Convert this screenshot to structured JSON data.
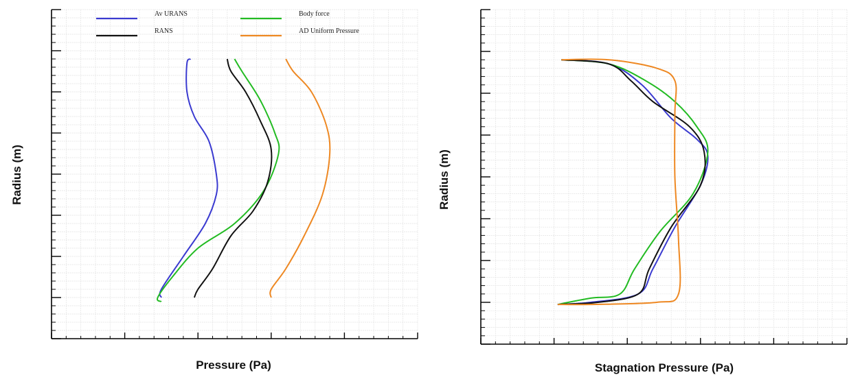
{
  "chart_data": [
    {
      "type": "line",
      "xlabel": "Pressure (Pa)",
      "ylabel": "Radius (m)",
      "x_tick_labels": [],
      "y_tick_labels": [],
      "xlim": [
        0,
        10
      ],
      "ylim": [
        0,
        8
      ],
      "grid": true,
      "legend": {
        "placement": "top",
        "columns": 2
      },
      "series": [
        {
          "name": "Av URANS",
          "color": "#3a3ad0",
          "points": [
            [
              3.8,
              6.8
            ],
            [
              3.7,
              6.7
            ],
            [
              3.7,
              6.0
            ],
            [
              3.9,
              5.4
            ],
            [
              4.3,
              4.8
            ],
            [
              4.5,
              4.0
            ],
            [
              4.5,
              3.5
            ],
            [
              4.2,
              2.8
            ],
            [
              3.6,
              2.0
            ],
            [
              3.0,
              1.2
            ],
            [
              3.0,
              1.0
            ]
          ]
        },
        {
          "name": "Body force",
          "color": "#22bb22",
          "points": [
            [
              5.0,
              6.8
            ],
            [
              5.2,
              6.5
            ],
            [
              5.7,
              5.8
            ],
            [
              6.1,
              5.0
            ],
            [
              6.2,
              4.5
            ],
            [
              5.8,
              3.6
            ],
            [
              5.0,
              2.8
            ],
            [
              4.0,
              2.2
            ],
            [
              3.3,
              1.5
            ],
            [
              2.9,
              1.0
            ],
            [
              3.0,
              0.9
            ]
          ]
        },
        {
          "name": "RANS",
          "color": "#111111",
          "points": [
            [
              4.8,
              6.8
            ],
            [
              4.9,
              6.5
            ],
            [
              5.3,
              6.0
            ],
            [
              5.7,
              5.3
            ],
            [
              6.0,
              4.6
            ],
            [
              5.9,
              3.8
            ],
            [
              5.5,
              3.1
            ],
            [
              4.9,
              2.5
            ],
            [
              4.4,
              1.7
            ],
            [
              4.0,
              1.2
            ],
            [
              3.9,
              1.0
            ]
          ]
        },
        {
          "name": "AD Uniform Pressure",
          "color": "#ee8822",
          "points": [
            [
              6.4,
              6.8
            ],
            [
              6.6,
              6.5
            ],
            [
              7.1,
              6.0
            ],
            [
              7.5,
              5.2
            ],
            [
              7.6,
              4.5
            ],
            [
              7.4,
              3.5
            ],
            [
              6.9,
              2.5
            ],
            [
              6.4,
              1.7
            ],
            [
              6.0,
              1.2
            ],
            [
              6.0,
              1.0
            ]
          ]
        }
      ]
    },
    {
      "type": "line",
      "xlabel": "Stagnation Pressure (Pa)",
      "ylabel": "Radius (m)",
      "x_tick_labels": [],
      "y_tick_labels": [],
      "xlim": [
        0,
        10
      ],
      "ylim": [
        0,
        8
      ],
      "grid": true,
      "legend": null,
      "series": [
        {
          "name": "",
          "color": "#3a3ad0",
          "points": [
            [
              2.2,
              6.8
            ],
            [
              3.5,
              6.7
            ],
            [
              4.4,
              6.2
            ],
            [
              5.2,
              5.4
            ],
            [
              5.9,
              4.9
            ],
            [
              6.2,
              4.5
            ],
            [
              6.0,
              3.8
            ],
            [
              5.3,
              2.8
            ],
            [
              4.7,
              1.8
            ],
            [
              4.3,
              1.2
            ],
            [
              3.0,
              1.0
            ],
            [
              2.1,
              0.95
            ]
          ]
        },
        {
          "name": "",
          "color": "#22bb22",
          "points": [
            [
              2.2,
              6.8
            ],
            [
              3.5,
              6.7
            ],
            [
              4.5,
              6.3
            ],
            [
              5.3,
              5.8
            ],
            [
              5.9,
              5.2
            ],
            [
              6.2,
              4.6
            ],
            [
              5.8,
              3.6
            ],
            [
              4.9,
              2.7
            ],
            [
              4.2,
              1.8
            ],
            [
              3.8,
              1.2
            ],
            [
              3.0,
              1.1
            ],
            [
              2.1,
              0.95
            ]
          ]
        },
        {
          "name": "",
          "color": "#111111",
          "points": [
            [
              2.2,
              6.8
            ],
            [
              3.5,
              6.7
            ],
            [
              4.1,
              6.3
            ],
            [
              4.7,
              5.8
            ],
            [
              5.7,
              5.2
            ],
            [
              6.1,
              4.6
            ],
            [
              6.0,
              3.8
            ],
            [
              5.2,
              2.8
            ],
            [
              4.6,
              1.8
            ],
            [
              4.3,
              1.2
            ],
            [
              3.2,
              1.0
            ],
            [
              2.1,
              0.95
            ]
          ]
        },
        {
          "name": "",
          "color": "#ee8822",
          "points": [
            [
              2.2,
              6.8
            ],
            [
              3.5,
              6.8
            ],
            [
              4.8,
              6.6
            ],
            [
              5.3,
              6.3
            ],
            [
              5.3,
              5.5
            ],
            [
              5.3,
              4.0
            ],
            [
              5.4,
              2.5
            ],
            [
              5.4,
              1.2
            ],
            [
              4.8,
              1.0
            ],
            [
              3.0,
              0.95
            ],
            [
              2.1,
              0.95
            ]
          ]
        }
      ]
    }
  ]
}
